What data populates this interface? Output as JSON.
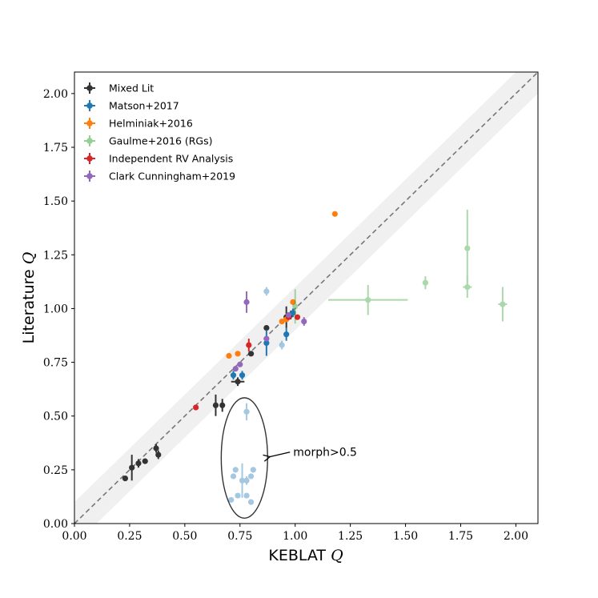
{
  "chart_data": {
    "type": "scatter",
    "xlabel": "KEBLAT Q",
    "ylabel": "Literature Q",
    "xlim": [
      0,
      2.1
    ],
    "ylim": [
      0,
      2.1
    ],
    "x_ticks": [
      0.0,
      0.25,
      0.5,
      0.75,
      1.0,
      1.25,
      1.5,
      1.75,
      2.0
    ],
    "y_ticks": [
      0.0,
      0.25,
      0.5,
      0.75,
      1.0,
      1.25,
      1.5,
      1.75,
      2.0
    ],
    "x_tick_labels": [
      "0.00",
      "0.25",
      "0.50",
      "0.75",
      "1.00",
      "1.25",
      "1.50",
      "1.75",
      "2.00"
    ],
    "y_tick_labels": [
      "0.00",
      "0.25",
      "0.50",
      "0.75",
      "1.00",
      "1.25",
      "1.50",
      "1.75",
      "2.00"
    ],
    "one_to_one_line": true,
    "band_halfwidth": 0.1,
    "legend_position": "top-left",
    "annotation": {
      "text": "morph>0.5",
      "target": [
        0.875,
        0.31
      ],
      "ellipse_center": [
        0.77,
        0.305
      ],
      "ellipse_radii": [
        0.105,
        0.28
      ]
    },
    "series": [
      {
        "name": "Mixed Lit",
        "color": "#333333",
        "alpha": 1.0,
        "points": [
          {
            "x": 0.23,
            "y": 0.21,
            "yerr": 0.01
          },
          {
            "x": 0.26,
            "y": 0.26,
            "yerr": 0.06
          },
          {
            "x": 0.29,
            "y": 0.28,
            "yerr": 0.02
          },
          {
            "x": 0.32,
            "y": 0.29,
            "yerr": 0.01
          },
          {
            "x": 0.37,
            "y": 0.35,
            "yerr": 0.02
          },
          {
            "x": 0.38,
            "y": 0.32,
            "yerr": 0.02
          },
          {
            "x": 0.64,
            "y": 0.55,
            "yerr": 0.05
          },
          {
            "x": 0.67,
            "y": 0.55,
            "yerr": 0.03
          },
          {
            "x": 0.74,
            "y": 0.66,
            "yerr": 0.02,
            "xerr": 0.03
          },
          {
            "x": 0.8,
            "y": 0.79,
            "yerr": 0.01
          },
          {
            "x": 0.87,
            "y": 0.91,
            "yerr": 0.01
          },
          {
            "x": 0.96,
            "y": 0.96,
            "yerr": 0.05
          },
          {
            "x": 0.98,
            "y": 0.97,
            "yerr": 0.02
          }
        ]
      },
      {
        "name": "Matson+2017",
        "color": "#1f77b4",
        "alpha": 1.0,
        "points": [
          {
            "x": 0.72,
            "y": 0.69,
            "yerr": 0.02
          },
          {
            "x": 0.76,
            "y": 0.69,
            "yerr": 0.02
          },
          {
            "x": 0.87,
            "y": 0.84,
            "yerr": 0.06
          },
          {
            "x": 0.96,
            "y": 0.88,
            "yerr": 0.03
          },
          {
            "x": 0.99,
            "y": 0.98,
            "yerr": 0.02
          }
        ]
      },
      {
        "name": "Matson+2017 (morph>0.5)",
        "color": "#1f77b4",
        "alpha": 0.4,
        "hidden_from_legend": true,
        "points": [
          {
            "x": 0.87,
            "y": 1.08,
            "yerr": 0.02
          },
          {
            "x": 0.94,
            "y": 0.83,
            "yerr": 0.02
          },
          {
            "x": 0.78,
            "y": 0.52,
            "yerr": 0.04
          },
          {
            "x": 0.72,
            "y": 0.22,
            "yerr": 0.01
          },
          {
            "x": 0.73,
            "y": 0.25,
            "yerr": 0.01
          },
          {
            "x": 0.76,
            "y": 0.2,
            "yerr": 0.08
          },
          {
            "x": 0.78,
            "y": 0.2,
            "yerr": 0.02
          },
          {
            "x": 0.81,
            "y": 0.25,
            "yerr": 0.01
          },
          {
            "x": 0.8,
            "y": 0.22,
            "yerr": 0.01
          },
          {
            "x": 0.74,
            "y": 0.13,
            "yerr": 0.01
          },
          {
            "x": 0.78,
            "y": 0.13,
            "yerr": 0.01
          },
          {
            "x": 0.8,
            "y": 0.1,
            "yerr": 0.01
          },
          {
            "x": 0.71,
            "y": 0.11,
            "yerr": 0.01
          }
        ]
      },
      {
        "name": "Helminiak+2016",
        "color": "#ff7f0e",
        "alpha": 1.0,
        "points": [
          {
            "x": 0.7,
            "y": 0.78
          },
          {
            "x": 0.74,
            "y": 0.79
          },
          {
            "x": 0.94,
            "y": 0.94
          },
          {
            "x": 0.96,
            "y": 0.95
          },
          {
            "x": 0.99,
            "y": 1.03
          },
          {
            "x": 1.18,
            "y": 1.44
          }
        ]
      },
      {
        "name": "Gaulme+2016 (RGs)",
        "color": "#2ca02c",
        "alpha": 0.4,
        "points": [
          {
            "x": 1.33,
            "y": 1.04,
            "yerr": 0.07,
            "xerr": 0.18
          },
          {
            "x": 1.59,
            "y": 1.12,
            "yerr": 0.03
          },
          {
            "x": 1.78,
            "y": 1.28,
            "yerr": 0.18
          },
          {
            "x": 1.78,
            "y": 1.1,
            "yerr": 0.05,
            "xerr": 0.02
          },
          {
            "x": 1.94,
            "y": 1.02,
            "yerr": 0.08,
            "xerr": 0.02
          },
          {
            "x": 1.0,
            "y": 1.01,
            "yerr": 0.08
          }
        ]
      },
      {
        "name": "Independent RV Analysis",
        "color": "#d62728",
        "alpha": 1.0,
        "points": [
          {
            "x": 0.55,
            "y": 0.54
          },
          {
            "x": 0.79,
            "y": 0.83,
            "yerr": 0.03
          },
          {
            "x": 0.97,
            "y": 0.96
          },
          {
            "x": 1.01,
            "y": 0.96
          }
        ]
      },
      {
        "name": "Clark Cunningham+2019",
        "color": "#9467bd",
        "alpha": 1.0,
        "points": [
          {
            "x": 0.78,
            "y": 1.03,
            "yerr": 0.05
          },
          {
            "x": 0.73,
            "y": 0.72
          },
          {
            "x": 0.75,
            "y": 0.74
          },
          {
            "x": 0.87,
            "y": 0.86
          },
          {
            "x": 0.97,
            "y": 0.97
          },
          {
            "x": 1.04,
            "y": 0.94,
            "yerr": 0.02
          }
        ]
      }
    ]
  }
}
